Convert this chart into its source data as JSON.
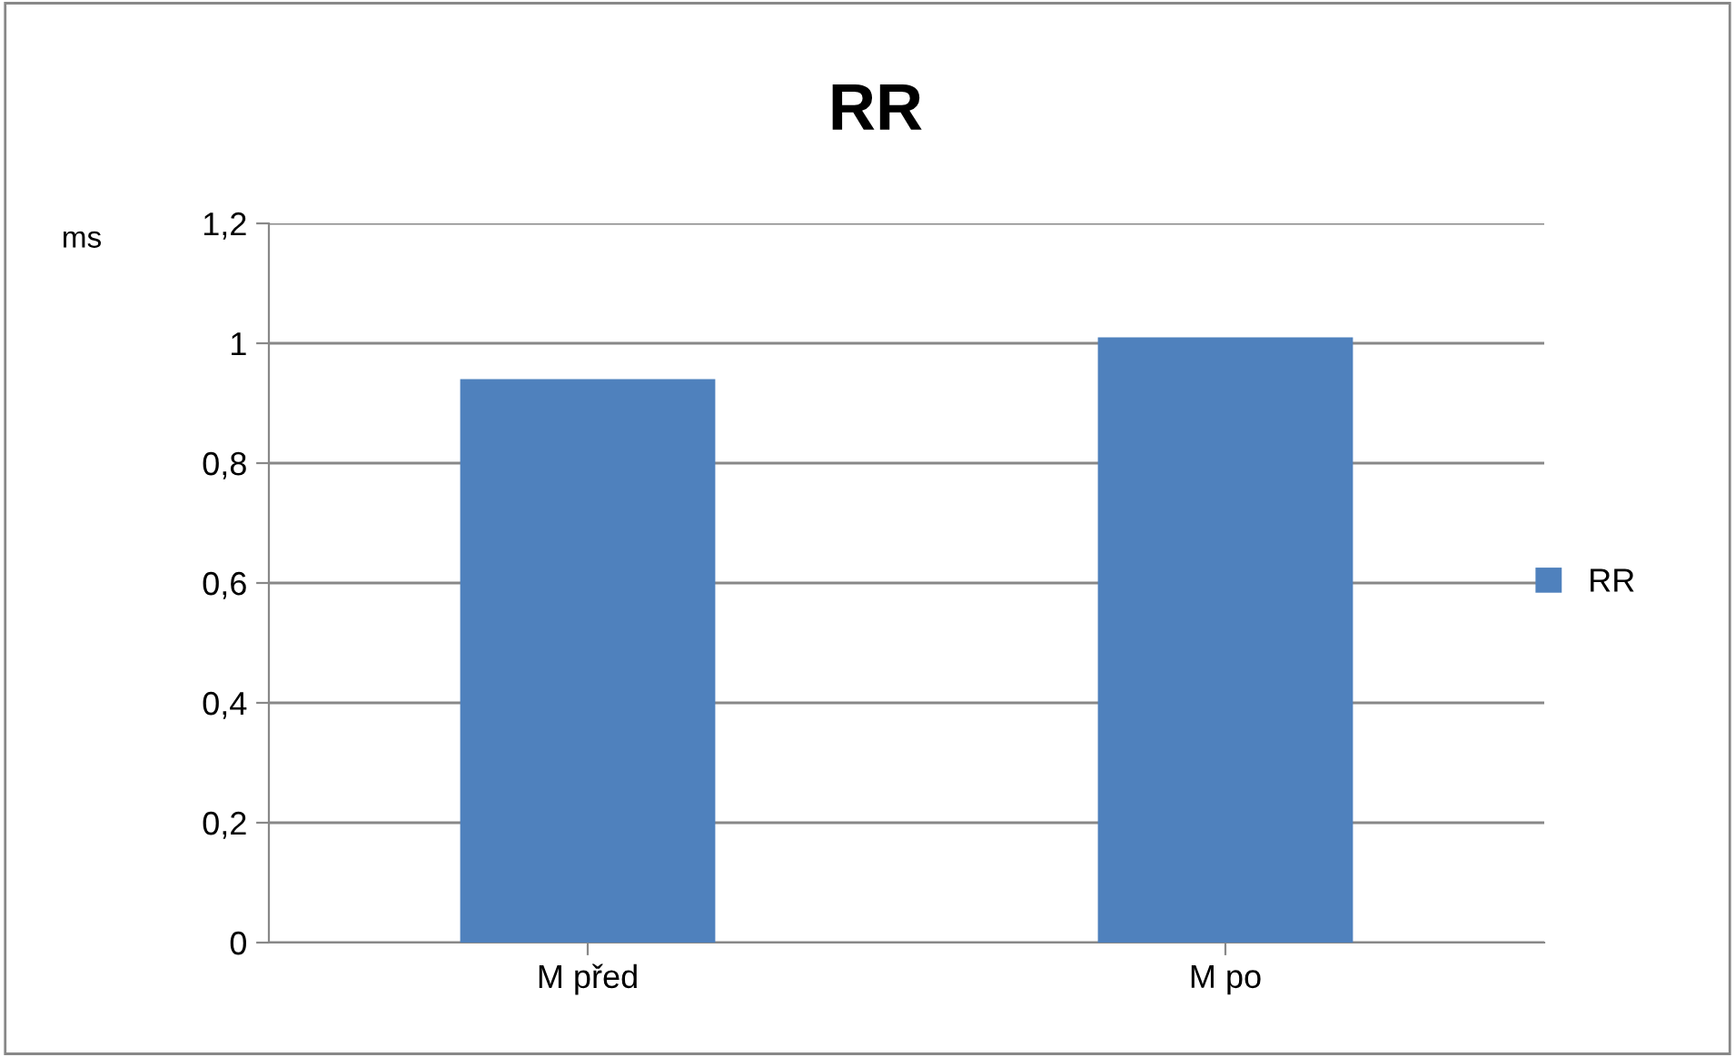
{
  "chart_data": {
    "type": "bar",
    "title": "RR",
    "ylabel": "ms",
    "categories": [
      "M před",
      "M po"
    ],
    "series": [
      {
        "name": "RR",
        "color": "#4f81bd",
        "values": [
          0.94,
          1.01
        ]
      }
    ],
    "ylim": [
      0,
      1.2
    ],
    "yticks": [
      0,
      {
        "value": 0.2,
        "label": "0,2"
      },
      {
        "value": 0.4,
        "label": "0,4"
      },
      {
        "value": 0.6,
        "label": "0,6"
      },
      {
        "value": 0.8,
        "label": "0,8"
      },
      1,
      {
        "value": 1.2,
        "label": "1,2"
      }
    ],
    "grid": "y",
    "legend": "right"
  }
}
